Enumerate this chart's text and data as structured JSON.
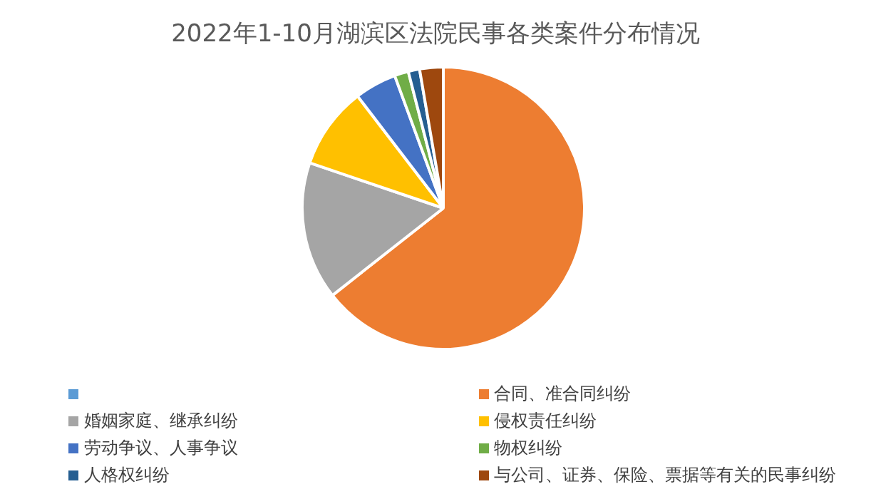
{
  "chart_data": {
    "type": "pie",
    "title": "2022年1-10月湖滨区法院民事各类案件分布情况",
    "categories": [
      null,
      "合同、准合同纠纷",
      "婚姻家庭、继承纠纷",
      "侵权责任纠纷",
      "劳动争议、人事争议",
      "物权纠纷",
      "人格权纠纷",
      "与公司、证券、保险、票据等有关的民事纠纷"
    ],
    "values": [
      0,
      64.4,
      15.8,
      9.4,
      4.8,
      1.6,
      1.3,
      2.7
    ],
    "colors": [
      "#5b9bd5",
      "#ed7d31",
      "#a5a5a5",
      "#ffc000",
      "#4472c4",
      "#70ad47",
      "#255e91",
      "#9e480e"
    ],
    "legend": "bottom"
  }
}
